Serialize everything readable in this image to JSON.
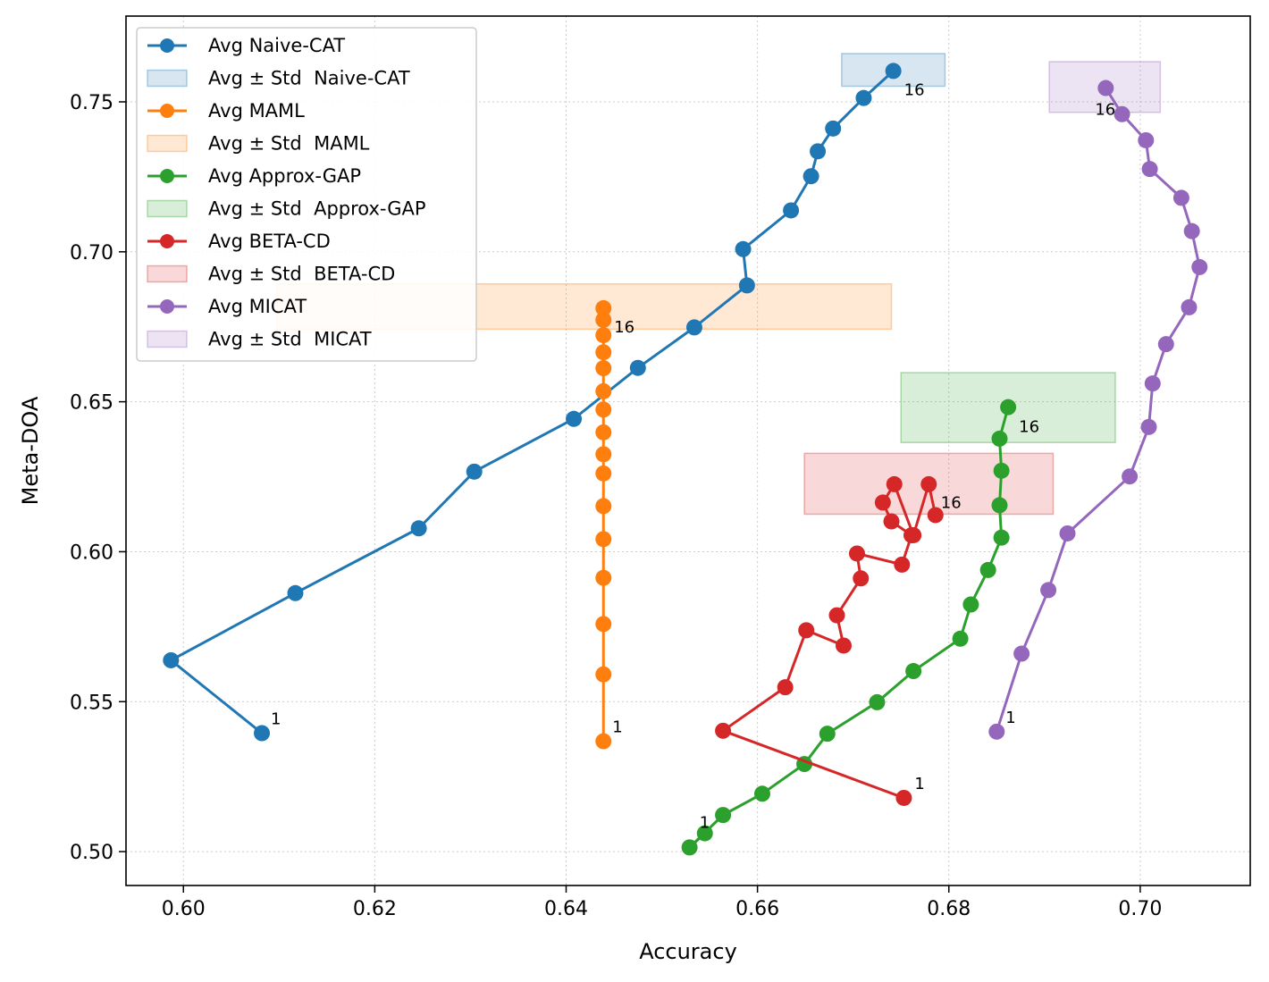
{
  "chart_data": {
    "type": "line",
    "xlabel": "Accuracy",
    "ylabel": "Meta-DOA",
    "xlim": [
      0.594,
      0.7115
    ],
    "ylim": [
      0.4887,
      0.7786
    ],
    "xticks": [
      0.6,
      0.62,
      0.64,
      0.66,
      0.68,
      0.7
    ],
    "xtick_labels": [
      "0.60",
      "0.62",
      "0.64",
      "0.66",
      "0.68",
      "0.70"
    ],
    "yticks": [
      0.5,
      0.55,
      0.6,
      0.65,
      0.7,
      0.75
    ],
    "ytick_labels": [
      "0.50",
      "0.55",
      "0.60",
      "0.65",
      "0.70",
      "0.75"
    ],
    "grid": true,
    "legend_position": "upper-left",
    "series": [
      {
        "name": "Avg Naive-CAT",
        "band_label": "Avg ± Std  Naive-CAT",
        "color": "#1f77b4",
        "start_label": "1",
        "end_label": "16",
        "points": [
          [
            0.6082,
            0.5395
          ],
          [
            0.5987,
            0.5638
          ],
          [
            0.6117,
            0.5862
          ],
          [
            0.6246,
            0.6078
          ],
          [
            0.6304,
            0.6267
          ],
          [
            0.6408,
            0.6443
          ],
          [
            0.6475,
            0.6613
          ],
          [
            0.6534,
            0.6748
          ],
          [
            0.6589,
            0.6888
          ],
          [
            0.6585,
            0.7009
          ],
          [
            0.6635,
            0.7138
          ],
          [
            0.6656,
            0.7252
          ],
          [
            0.6663,
            0.7335
          ],
          [
            0.6679,
            0.7411
          ],
          [
            0.6711,
            0.7513
          ],
          [
            0.6742,
            0.7603
          ]
        ],
        "band": {
          "x": [
            0.6688,
            0.6796
          ],
          "y": [
            0.7552,
            0.7661
          ]
        }
      },
      {
        "name": "Avg MAML",
        "band_label": "Avg ± Std  MAML",
        "color": "#ff7f0e",
        "start_label": "1",
        "end_label": "16",
        "points": [
          [
            0.6439,
            0.5368
          ],
          [
            0.6439,
            0.5591
          ],
          [
            0.6439,
            0.5759
          ],
          [
            0.6439,
            0.5913
          ],
          [
            0.6439,
            0.6042
          ],
          [
            0.6439,
            0.6152
          ],
          [
            0.6439,
            0.6261
          ],
          [
            0.6439,
            0.6325
          ],
          [
            0.6439,
            0.6398
          ],
          [
            0.6439,
            0.6474
          ],
          [
            0.6439,
            0.6535
          ],
          [
            0.6439,
            0.6612
          ],
          [
            0.6439,
            0.6665
          ],
          [
            0.6439,
            0.6722
          ],
          [
            0.6439,
            0.6773
          ],
          [
            0.6439,
            0.6812
          ]
        ],
        "band": {
          "x": [
            0.6098,
            0.674
          ],
          "y": [
            0.6742,
            0.6893
          ]
        }
      },
      {
        "name": "Avg Approx-GAP",
        "band_label": "Avg ± Std  Approx-GAP",
        "color": "#2ca02c",
        "start_label": "1",
        "end_label": "16",
        "points": [
          [
            0.6545,
            0.5061
          ],
          [
            0.6529,
            0.5014
          ],
          [
            0.6564,
            0.5122
          ],
          [
            0.6605,
            0.5193
          ],
          [
            0.6649,
            0.5292
          ],
          [
            0.6673,
            0.5393
          ],
          [
            0.6725,
            0.5498
          ],
          [
            0.6763,
            0.5602
          ],
          [
            0.6812,
            0.571
          ],
          [
            0.6823,
            0.5824
          ],
          [
            0.6841,
            0.5939
          ],
          [
            0.6855,
            0.6047
          ],
          [
            0.6853,
            0.6155
          ],
          [
            0.6855,
            0.627
          ],
          [
            0.6853,
            0.6377
          ],
          [
            0.6862,
            0.6482
          ]
        ],
        "band": {
          "x": [
            0.675,
            0.6974
          ],
          "y": [
            0.6364,
            0.6597
          ]
        }
      },
      {
        "name": "Avg BETA-CD",
        "band_label": "Avg ± Std  BETA-CD",
        "color": "#d62728",
        "start_label": "1",
        "end_label": "16",
        "points": [
          [
            0.6753,
            0.5179
          ],
          [
            0.6564,
            0.5403
          ],
          [
            0.6629,
            0.5548
          ],
          [
            0.6651,
            0.5738
          ],
          [
            0.669,
            0.5687
          ],
          [
            0.6683,
            0.5788
          ],
          [
            0.6708,
            0.5911
          ],
          [
            0.6704,
            0.5994
          ],
          [
            0.6751,
            0.5957
          ],
          [
            0.6761,
            0.6055
          ],
          [
            0.674,
            0.6101
          ],
          [
            0.6731,
            0.6164
          ],
          [
            0.6743,
            0.6225
          ],
          [
            0.6763,
            0.6055
          ],
          [
            0.6779,
            0.6225
          ],
          [
            0.6786,
            0.6122
          ]
        ],
        "band": {
          "x": [
            0.6649,
            0.6909
          ],
          "y": [
            0.6125,
            0.6328
          ]
        }
      },
      {
        "name": "Avg MICAT",
        "band_label": "Avg ± Std  MICAT",
        "color": "#9467bd",
        "start_label": "1",
        "end_label": "16",
        "points": [
          [
            0.685,
            0.54
          ],
          [
            0.6876,
            0.566
          ],
          [
            0.6904,
            0.5872
          ],
          [
            0.6924,
            0.6061
          ],
          [
            0.6989,
            0.6251
          ],
          [
            0.7009,
            0.6416
          ],
          [
            0.7013,
            0.6561
          ],
          [
            0.7027,
            0.6692
          ],
          [
            0.7051,
            0.6815
          ],
          [
            0.7062,
            0.6949
          ],
          [
            0.7054,
            0.7069
          ],
          [
            0.7043,
            0.718
          ],
          [
            0.701,
            0.7276
          ],
          [
            0.7006,
            0.7372
          ],
          [
            0.6981,
            0.7459
          ],
          [
            0.6964,
            0.7546
          ]
        ],
        "band": {
          "x": [
            0.6905,
            0.7021
          ],
          "y": [
            0.7465,
            0.7634
          ]
        }
      }
    ]
  }
}
